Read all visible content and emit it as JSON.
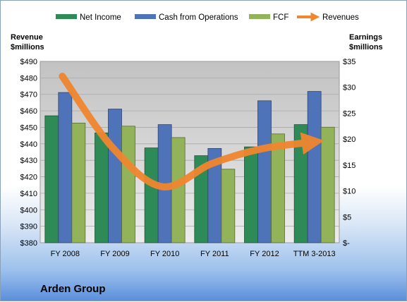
{
  "chart_data": {
    "type": "bar",
    "title": "",
    "company": "Arden Group",
    "categories": [
      "FY 2008",
      "FY 2009",
      "FY 2010",
      "FY 2011",
      "FY 2012",
      "TTM 3-2013"
    ],
    "left_axis": {
      "label_line1": "Revenue",
      "label_line2": "$millions",
      "ticks": [
        "$380",
        "$390",
        "$400",
        "$410",
        "$420",
        "$430",
        "$440",
        "$450",
        "$460",
        "$470",
        "$480",
        "$490"
      ],
      "ylim": [
        380,
        490
      ]
    },
    "right_axis": {
      "label_line1": "Earnings",
      "label_line2": "$millions",
      "ticks": [
        "$-",
        "$5",
        "$10",
        "$15",
        "$20",
        "$25",
        "$30",
        "$35"
      ],
      "ylim": [
        0,
        35
      ]
    },
    "series": [
      {
        "name": "Net Income",
        "axis": "right",
        "kind": "bar",
        "color": "#2e8b57",
        "values": [
          24.5,
          21.2,
          18.3,
          16.8,
          18.5,
          22.8
        ]
      },
      {
        "name": "Cash from Operations",
        "axis": "right",
        "kind": "bar",
        "color": "#4f73b8",
        "values": [
          29.0,
          25.8,
          22.8,
          18.2,
          27.4,
          29.2
        ]
      },
      {
        "name": "FCF",
        "axis": "right",
        "kind": "bar",
        "color": "#93b35a",
        "values": [
          23.1,
          22.5,
          20.3,
          14.2,
          21.0,
          22.3
        ]
      },
      {
        "name": "Revenues",
        "axis": "left",
        "kind": "line",
        "color": "#f0862f",
        "values": [
          481,
          438,
          414,
          428,
          437,
          441
        ]
      }
    ],
    "grid": true,
    "legend_position": "top"
  }
}
